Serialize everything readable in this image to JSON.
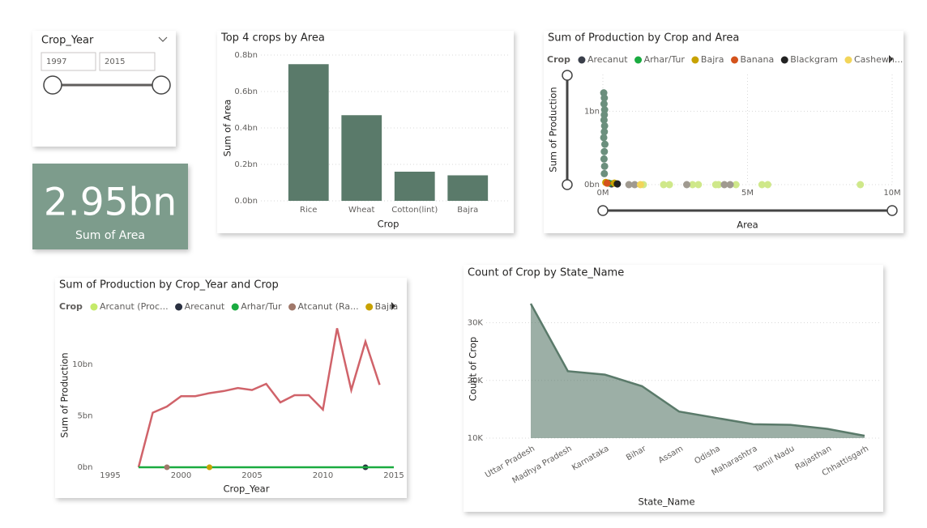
{
  "slicer": {
    "title": "Crop_Year",
    "start": 1997,
    "end": 2015
  },
  "card": {
    "value": 2950000000,
    "value_label": "2.95bn",
    "label": "Sum of Area"
  },
  "chart_data": [
    {
      "type": "bar",
      "title": "Top 4 crops by Area",
      "x_label": "Crop",
      "y_label": "Sum of Area",
      "categories": [
        "Rice",
        "Wheat",
        "Cotton(lint)",
        "Bajra"
      ],
      "values": [
        0.75,
        0.47,
        0.16,
        0.14
      ],
      "color": "#5a7a6a",
      "ylim": [
        0,
        0.8
      ],
      "yticks": [
        {
          "value": 0,
          "label": "0.0bn"
        },
        {
          "value": 0.2,
          "label": "0.2bn"
        },
        {
          "value": 0.4,
          "label": "0.4bn"
        },
        {
          "value": 0.6,
          "label": "0.6bn"
        },
        {
          "value": 0.8,
          "label": "0.8bn"
        }
      ],
      "grid": true
    },
    {
      "type": "scatter",
      "title": "Sum of Production by Crop and Area",
      "x_label": "Area",
      "y_label": "Sum of Production",
      "legend_title": "Crop",
      "xlim": [
        0,
        10
      ],
      "xticks": [
        {
          "value": 0,
          "label": "0M"
        },
        {
          "value": 5,
          "label": "5M"
        },
        {
          "value": 10,
          "label": "10M"
        }
      ],
      "ylim": [
        0,
        1.5
      ],
      "yticks": [
        {
          "value": 0,
          "label": "0bn"
        },
        {
          "value": 1,
          "label": "1bn"
        }
      ],
      "grid": true,
      "series": [
        {
          "color": "#6b8f7d",
          "x": [
            0.03,
            0.05,
            0.04,
            0.06,
            0.05,
            0.04,
            0.06,
            0.05,
            0.03,
            0.07,
            0.05,
            0.04,
            0.06,
            0.05
          ],
          "values": [
            1.25,
            1.18,
            1.1,
            1.02,
            0.95,
            0.88,
            0.8,
            0.72,
            0.64,
            0.55,
            0.45,
            0.35,
            0.25,
            0.15
          ]
        },
        {
          "color": "#cfe88a",
          "x": [
            1.4,
            2.1,
            2.3,
            3.1,
            3.3,
            3.9,
            4.0,
            4.6,
            5.5,
            5.7,
            8.9
          ],
          "values": [
            0,
            0,
            0,
            0,
            0,
            0,
            0,
            0,
            0,
            0,
            0
          ]
        },
        {
          "color": "#a09a90",
          "x": [
            0.9,
            1.1,
            2.9,
            4.2,
            4.4
          ],
          "values": [
            0,
            0,
            0,
            0,
            0
          ]
        },
        {
          "name": "Arecanut",
          "color": "#3a3f4a",
          "x": [
            0.3
          ],
          "values": [
            0.01
          ]
        },
        {
          "name": "Arhar/Tur",
          "color": "#1aab40",
          "x": [
            0.2
          ],
          "values": [
            0.02
          ]
        },
        {
          "name": "Bajra",
          "color": "#c8a200",
          "x": [
            0.1,
            0.4
          ],
          "values": [
            0.03,
            0.02
          ]
        },
        {
          "name": "Banana",
          "color": "#d4531c",
          "x": [
            0.15
          ],
          "values": [
            0.02
          ]
        },
        {
          "name": "Blackgram",
          "color": "#222222",
          "x": [
            0.5
          ],
          "values": [
            0.01
          ]
        },
        {
          "name": "Cashewn...",
          "color": "#f2d55a",
          "x": [
            1.3
          ],
          "values": [
            0
          ]
        }
      ]
    },
    {
      "type": "line",
      "title": "Sum of Production by Crop_Year and Crop",
      "x_label": "Crop_Year",
      "y_label": "Sum of Production",
      "legend_title": "Crop",
      "x": [
        1997,
        1998,
        1999,
        2000,
        2001,
        2002,
        2003,
        2004,
        2005,
        2006,
        2007,
        2008,
        2009,
        2010,
        2011,
        2012,
        2013,
        2014,
        2015
      ],
      "xlim": [
        1994,
        2015.2
      ],
      "xticks": [
        1995,
        2000,
        2005,
        2010,
        2015
      ],
      "ylim": [
        0,
        14
      ],
      "yticks": [
        {
          "value": 0,
          "label": "0bn"
        },
        {
          "value": 5,
          "label": "5bn"
        },
        {
          "value": 10,
          "label": "10bn"
        }
      ],
      "series": [
        {
          "color": "#d0636a",
          "values": [
            0,
            5.3,
            5.9,
            6.9,
            6.9,
            7.2,
            7.4,
            7.7,
            7.5,
            8.1,
            6.3,
            7.0,
            7.0,
            5.6,
            13.5,
            7.5,
            12.2,
            8.0,
            null
          ]
        },
        {
          "name": "Arcanut (Proc...",
          "color": "#c5ea6a",
          "values": [
            null,
            null,
            null,
            null,
            null,
            0,
            null,
            null,
            null,
            null,
            null,
            null,
            null,
            null,
            null,
            null,
            null,
            null,
            null
          ]
        },
        {
          "name": "Arecanut",
          "color": "#2a3040",
          "values": [
            null,
            null,
            null,
            null,
            null,
            null,
            null,
            null,
            null,
            null,
            null,
            null,
            null,
            null,
            null,
            null,
            0,
            null,
            null
          ]
        },
        {
          "name": "Arhar/Tur",
          "color": "#1aab40",
          "values": [
            0,
            0,
            0,
            0,
            0,
            0,
            0,
            0,
            0,
            0,
            0,
            0,
            0,
            0,
            0,
            0,
            0,
            0,
            0
          ]
        },
        {
          "name": "Atcanut (Ra...",
          "color": "#a0786a",
          "values": [
            null,
            null,
            0,
            null,
            null,
            null,
            null,
            null,
            null,
            null,
            null,
            null,
            null,
            null,
            null,
            null,
            null,
            null,
            null
          ]
        },
        {
          "name": "Bajra",
          "color": "#c8a200",
          "values": [
            null,
            null,
            null,
            null,
            null,
            0,
            null,
            null,
            null,
            null,
            null,
            null,
            null,
            null,
            null,
            null,
            null,
            null,
            null
          ]
        }
      ]
    },
    {
      "type": "area",
      "title": "Count of Crop by State_Name",
      "x_label": "State_Name",
      "y_label": "Count of Crop",
      "categories": [
        "Uttar Pradesh",
        "Madhya Pradesh",
        "Karnataka",
        "Bihar",
        "Assam",
        "Odisha",
        "Maharashtra",
        "Tamil Nadu",
        "Rajasthan",
        "Chhattisgarh"
      ],
      "values": [
        33.3,
        21.6,
        21.0,
        19.0,
        14.6,
        13.5,
        12.4,
        12.3,
        11.6,
        10.4
      ],
      "color": "#5a7a6a",
      "ylim": [
        10,
        34
      ],
      "yticks": [
        {
          "value": 10,
          "label": "10K"
        },
        {
          "value": 20,
          "label": "20K"
        },
        {
          "value": 30,
          "label": "30K"
        }
      ],
      "grid": true
    }
  ]
}
